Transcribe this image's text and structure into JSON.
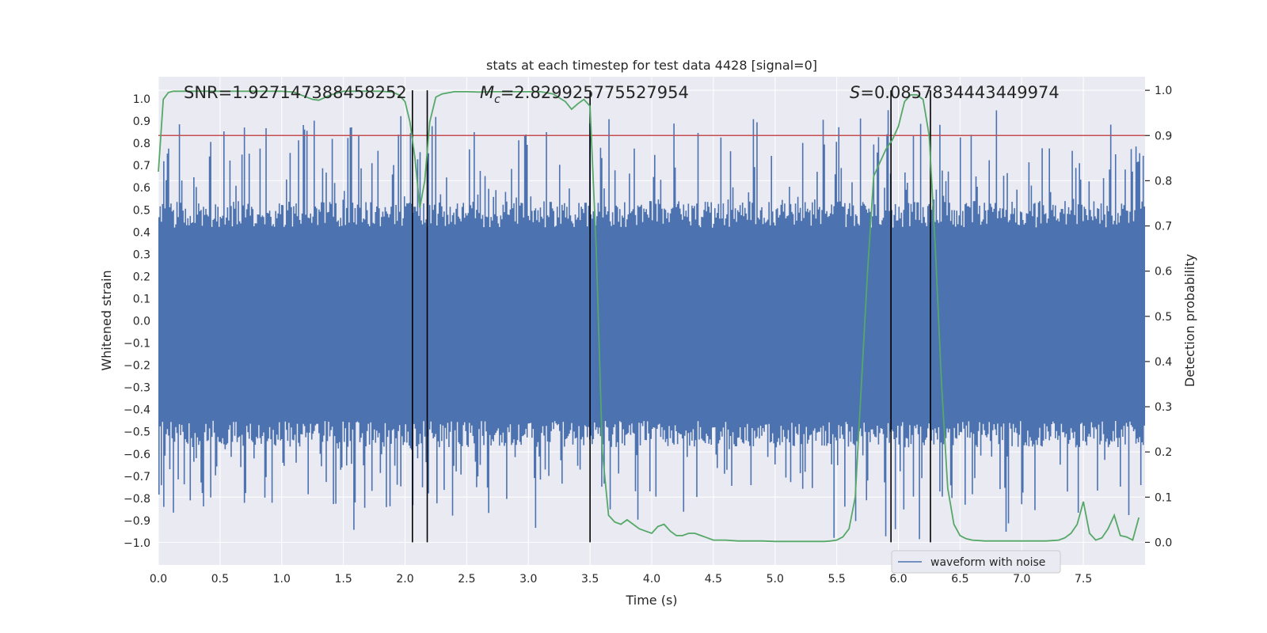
{
  "chart_data": {
    "type": "line",
    "title": "stats at each timestep for test data 4428 [signal=0]",
    "xlabel": "Time (s)",
    "ylabel_left": "Whitened strain",
    "ylabel_right": "Detection probability",
    "xlim": [
      0,
      8
    ],
    "ylim_left": [
      -1.1,
      1.1
    ],
    "ylim_right": [
      -0.05,
      1.03
    ],
    "x_ticks": [
      0.0,
      0.5,
      1.0,
      1.5,
      2.0,
      2.5,
      3.0,
      3.5,
      4.0,
      4.5,
      5.0,
      5.5,
      6.0,
      6.5,
      7.0,
      7.5
    ],
    "x_tick_labels": [
      "0.0",
      "0.5",
      "1.0",
      "1.5",
      "2.0",
      "2.5",
      "3.0",
      "3.5",
      "4.0",
      "4.5",
      "5.0",
      "5.5",
      "6.0",
      "6.5",
      "7.0",
      "7.5"
    ],
    "y_left_ticks": [
      1.0,
      0.9,
      0.8,
      0.7,
      0.6,
      0.5,
      0.4,
      0.3,
      0.2,
      0.1,
      0.0,
      -0.1,
      -0.2,
      -0.3,
      -0.4,
      -0.5,
      -0.6,
      -0.7,
      -0.8,
      -0.9,
      -1.0
    ],
    "y_left_tick_labels": [
      "1.0",
      "0.9",
      "0.8",
      "0.7",
      "0.6",
      "0.5",
      "0.4",
      "0.3",
      "0.2",
      "0.1",
      "0.0",
      "−0.1",
      "−0.2",
      "−0.3",
      "−0.4",
      "−0.5",
      "−0.6",
      "−0.7",
      "−0.8",
      "−0.9",
      "−1.0"
    ],
    "y_right_ticks": [
      1.0,
      0.9,
      0.8,
      0.7,
      0.6,
      0.5,
      0.4,
      0.3,
      0.2,
      0.1,
      0.0
    ],
    "y_right_tick_labels": [
      "1.0",
      "0.9",
      "0.8",
      "0.7",
      "0.6",
      "0.5",
      "0.4",
      "0.3",
      "0.2",
      "0.1",
      "0.0"
    ],
    "annotations": {
      "snr": "SNR=1.927147388458252",
      "mc_symbol": "M",
      "mc_subscript": "c",
      "mc_value": "=2.829925775527954",
      "s_symbol": "S",
      "s_value": "=0.0857834443449974"
    },
    "threshold": {
      "value": 0.9,
      "axis": "right",
      "color": "#c44e52"
    },
    "vertical_lines_x": [
      2.06,
      2.18,
      3.5,
      5.94,
      6.26
    ],
    "legend": {
      "label": "waveform with noise",
      "position": "bottom-right"
    },
    "colors": {
      "waveform": "#4c72b0",
      "probability": "#55a868",
      "axes_bg": "#eaeaf2",
      "grid": "#ffffff",
      "vline": "#000000"
    },
    "series": [
      {
        "name": "waveform with noise",
        "axis": "left",
        "description": "noise envelope",
        "envelope_approx": [
          -0.45,
          0.42
        ],
        "peak_abs_max": 1.0
      },
      {
        "name": "detection probability",
        "axis": "right",
        "x": [
          0.0,
          0.04,
          0.08,
          0.12,
          0.2,
          0.3,
          0.5,
          0.7,
          0.9,
          1.0,
          1.1,
          1.2,
          1.25,
          1.3,
          1.4,
          1.5,
          1.6,
          1.7,
          1.8,
          1.9,
          1.95,
          2.0,
          2.04,
          2.08,
          2.12,
          2.16,
          2.2,
          2.25,
          2.3,
          2.4,
          2.5,
          2.6,
          2.7,
          2.8,
          2.9,
          3.0,
          3.1,
          3.2,
          3.3,
          3.35,
          3.4,
          3.45,
          3.5,
          3.55,
          3.6,
          3.65,
          3.7,
          3.75,
          3.8,
          3.85,
          3.9,
          3.95,
          4.0,
          4.05,
          4.1,
          4.15,
          4.2,
          4.25,
          4.3,
          4.35,
          4.4,
          4.45,
          4.5,
          4.55,
          4.6,
          4.7,
          4.8,
          4.9,
          5.0,
          5.1,
          5.2,
          5.3,
          5.4,
          5.45,
          5.5,
          5.55,
          5.6,
          5.65,
          5.7,
          5.75,
          5.8,
          5.85,
          5.9,
          5.95,
          6.0,
          6.05,
          6.1,
          6.15,
          6.2,
          6.25,
          6.3,
          6.35,
          6.4,
          6.45,
          6.5,
          6.55,
          6.6,
          6.7,
          6.8,
          6.9,
          7.0,
          7.1,
          7.2,
          7.3,
          7.35,
          7.4,
          7.45,
          7.5,
          7.55,
          7.6,
          7.65,
          7.7,
          7.75,
          7.8,
          7.85,
          7.9,
          7.95
        ],
        "y": [
          0.82,
          0.98,
          0.995,
          0.998,
          0.998,
          0.998,
          0.998,
          0.998,
          0.998,
          0.998,
          0.996,
          0.985,
          0.98,
          0.978,
          0.99,
          0.998,
          0.998,
          0.998,
          0.998,
          0.996,
          0.99,
          0.975,
          0.93,
          0.85,
          0.74,
          0.8,
          0.93,
          0.985,
          0.992,
          0.997,
          0.997,
          0.996,
          0.997,
          0.997,
          0.997,
          0.997,
          0.997,
          0.992,
          0.975,
          0.958,
          0.97,
          0.98,
          0.965,
          0.65,
          0.2,
          0.06,
          0.045,
          0.04,
          0.05,
          0.04,
          0.03,
          0.025,
          0.02,
          0.035,
          0.04,
          0.025,
          0.015,
          0.015,
          0.02,
          0.02,
          0.015,
          0.01,
          0.005,
          0.005,
          0.005,
          0.003,
          0.003,
          0.003,
          0.002,
          0.002,
          0.002,
          0.002,
          0.002,
          0.003,
          0.005,
          0.012,
          0.03,
          0.1,
          0.35,
          0.6,
          0.81,
          0.84,
          0.87,
          0.89,
          0.92,
          0.975,
          0.99,
          0.99,
          0.98,
          0.9,
          0.65,
          0.35,
          0.12,
          0.04,
          0.015,
          0.008,
          0.005,
          0.003,
          0.003,
          0.003,
          0.003,
          0.003,
          0.003,
          0.005,
          0.01,
          0.02,
          0.04,
          0.09,
          0.02,
          0.005,
          0.01,
          0.03,
          0.06,
          0.015,
          0.012,
          0.005,
          0.055
        ]
      }
    ]
  }
}
